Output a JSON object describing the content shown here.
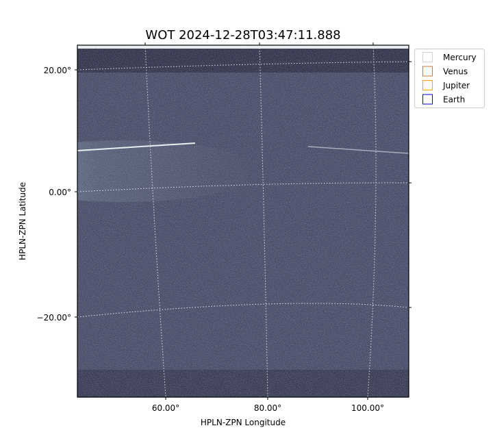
{
  "chart_data": {
    "type": "heatmap",
    "title": "WOT 2024-12-28T03:47:11.888",
    "xlabel": "HPLN-ZPN Longitude",
    "ylabel": "HPLN-ZPN Latitude",
    "x_ticks": [
      "60.00°",
      "80.00°",
      "100.00°"
    ],
    "y_ticks": [
      "20.00°",
      "0.00°",
      "−20.00°"
    ],
    "grid": true,
    "colormap": "bone",
    "legend": {
      "placement": "outside-top-right",
      "entries": [
        {
          "name": "Mercury",
          "color": "#d3d3d3"
        },
        {
          "name": "Venus",
          "color": "#c87a3e"
        },
        {
          "name": "Jupiter",
          "color": "#ffa500"
        },
        {
          "name": "Earth",
          "color": "#0000ff"
        }
      ]
    }
  }
}
